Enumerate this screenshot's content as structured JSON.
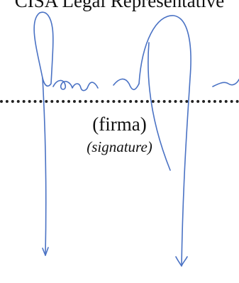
{
  "document": {
    "heading_fragment": "CISA Legal Representative",
    "signature_label": "(firma)",
    "signature_label_translation": "(signature)"
  },
  "colors": {
    "ink": "#4a72c4",
    "text": "#111111",
    "dots": "#222222"
  }
}
